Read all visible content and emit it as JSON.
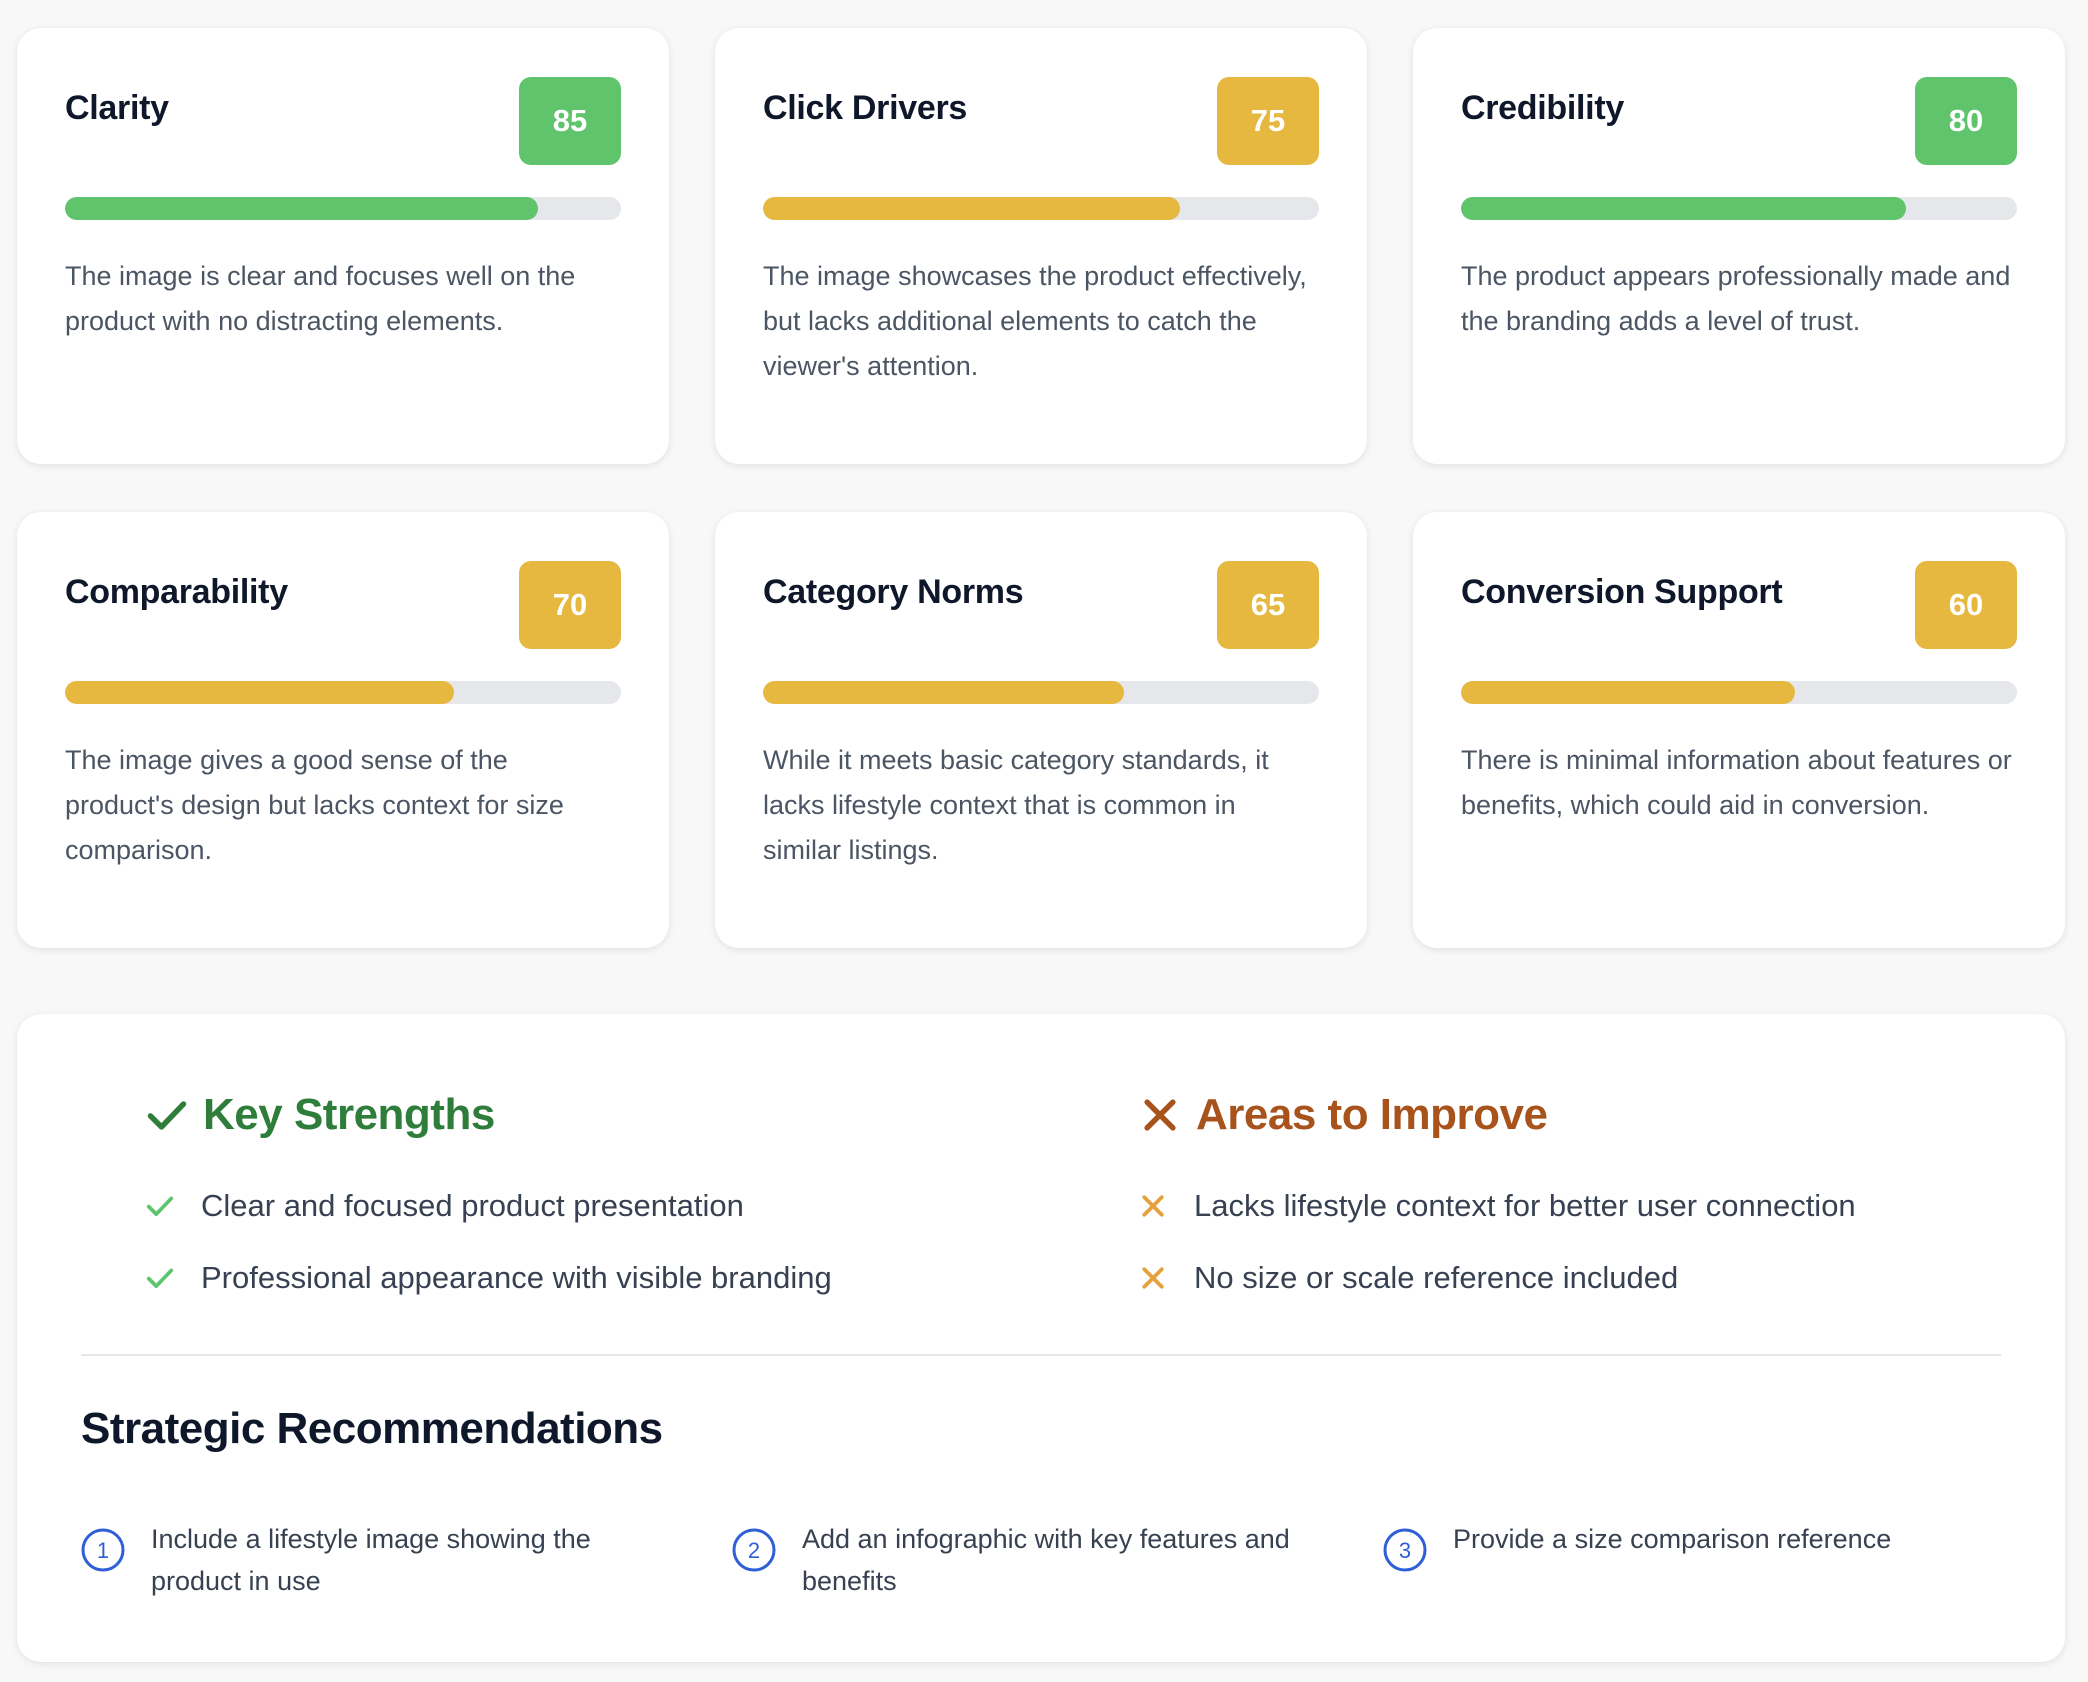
{
  "metrics": [
    {
      "title": "Clarity",
      "score": 85,
      "score_label": "85",
      "level": "good",
      "fill": 0.85,
      "desc": "The image is clear and focuses well on the product with no distracting elements."
    },
    {
      "title": "Click Drivers",
      "score": 75,
      "score_label": "75",
      "level": "mid",
      "fill": 0.75,
      "desc": "The image showcases the product effectively, but lacks additional elements to catch the viewer's attention."
    },
    {
      "title": "Credibility",
      "score": 80,
      "score_label": "80",
      "level": "good",
      "fill": 0.8,
      "desc": "The product appears professionally made and the branding adds a level of trust."
    },
    {
      "title": "Comparability",
      "score": 70,
      "score_label": "70",
      "level": "mid",
      "fill": 0.7,
      "desc": "The image gives a good sense of the product's design but lacks context for size comparison."
    },
    {
      "title": "Category Norms",
      "score": 65,
      "score_label": "65",
      "level": "mid",
      "fill": 0.65,
      "desc": "While it meets basic category standards, it lacks lifestyle context that is common in similar listings."
    },
    {
      "title": "Conversion Support",
      "score": 60,
      "score_label": "60",
      "level": "mid",
      "fill": 0.6,
      "desc": "There is minimal information about features or benefits, which could aid in conversion."
    }
  ],
  "colors": {
    "good": "#5fc46b",
    "mid": "#e6b840",
    "strengths": "#2f7d3a",
    "strength_check": "#5fc46b",
    "improve": "#a8521c",
    "improve_x": "#e5a13c",
    "rec_circle": "#2f5fd6"
  },
  "strengths": {
    "title": "Key Strengths",
    "icon": "check-icon",
    "items": [
      "Clear and focused product presentation",
      "Professional appearance with visible branding"
    ]
  },
  "improve": {
    "title": "Areas to Improve",
    "icon": "x-icon",
    "items": [
      "Lacks lifestyle context for better user connection",
      "No size or scale reference included"
    ]
  },
  "recommendations": {
    "title": "Strategic Recommendations",
    "items": [
      {
        "num": "1",
        "text": "Include a lifestyle image showing the product in use"
      },
      {
        "num": "2",
        "text": "Add an infographic with key features and benefits"
      },
      {
        "num": "3",
        "text": "Provide a size comparison reference"
      }
    ]
  }
}
